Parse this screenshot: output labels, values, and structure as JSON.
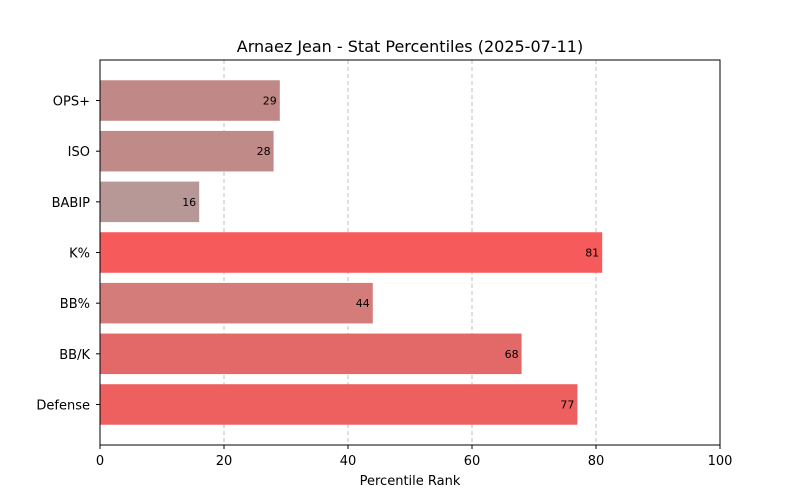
{
  "chart_data": {
    "type": "bar",
    "orientation": "horizontal",
    "title": "Arnaez Jean - Stat Percentiles (2025-07-11)",
    "xlabel": "Percentile Rank",
    "ylabel": "",
    "xlim": [
      0,
      100
    ],
    "xticks": [
      0,
      20,
      40,
      60,
      80,
      100
    ],
    "grid": "x-dashed",
    "categories": [
      "OPS+",
      "ISO",
      "BABIP",
      "K%",
      "BB%",
      "BB/K",
      "Defense"
    ],
    "values": [
      29,
      28,
      16,
      81,
      44,
      68,
      77
    ],
    "colors": [
      "#c08987",
      "#c08a88",
      "#b79897",
      "#f65a5a",
      "#d37c79",
      "#e36969",
      "#ee5f5f"
    ]
  }
}
